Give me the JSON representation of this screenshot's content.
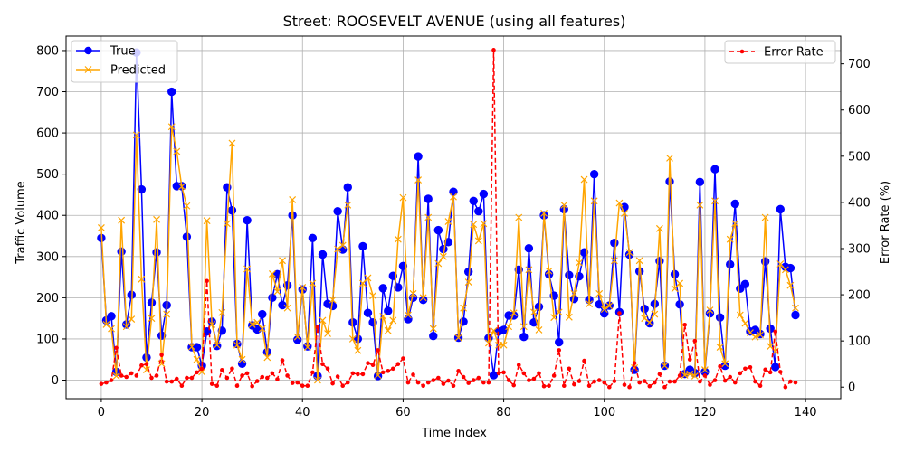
{
  "chart_data": {
    "type": "line",
    "title": "Street: ROOSEVELT AVENUE (using all features)",
    "xlabel": "Time Index",
    "ylabel": "Traffic Volume",
    "y2label": "Error Rate (%)",
    "xlim": [
      -7,
      147
    ],
    "ylim": [
      -45,
      835
    ],
    "y2lim": [
      -25,
      760
    ],
    "xticks": [
      0,
      20,
      40,
      60,
      80,
      100,
      120,
      140
    ],
    "yticks": [
      0,
      100,
      200,
      300,
      400,
      500,
      600,
      700,
      800
    ],
    "y2ticks": [
      0,
      100,
      200,
      300,
      400,
      500,
      600,
      700
    ],
    "grid": true,
    "legend_left_placement": "upper-left",
    "legend_right_placement": "upper-right",
    "colors": {
      "true": "#0000ff",
      "predicted": "#ffa500",
      "error": "#ff0000"
    },
    "series": [
      {
        "name": "True",
        "axis": "left",
        "values": [
          345,
          145,
          155,
          20,
          312,
          135,
          207,
          795,
          463,
          55,
          188,
          310,
          108,
          182,
          700,
          471,
          471,
          348,
          80,
          80,
          35,
          118,
          142,
          83,
          120,
          468,
          412,
          88,
          40,
          388,
          133,
          123,
          160,
          68,
          200,
          257,
          182,
          230,
          400,
          98,
          220,
          82,
          345,
          10,
          305,
          185,
          180,
          410,
          317,
          468,
          140,
          100,
          325,
          163,
          140,
          10,
          223,
          168,
          253,
          225,
          277,
          148,
          200,
          543,
          195,
          440,
          107,
          364,
          318,
          335,
          457,
          103,
          142,
          263,
          435,
          410,
          452,
          102,
          12,
          118,
          122,
          157,
          157,
          268,
          105,
          320,
          140,
          178,
          400,
          257,
          205,
          92,
          415,
          255,
          197,
          252,
          310,
          195,
          500,
          184,
          162,
          181,
          333,
          165,
          420,
          305,
          25,
          264,
          173,
          138,
          185,
          289,
          35,
          482,
          257,
          184,
          15,
          25,
          17,
          481,
          20,
          162,
          512,
          152,
          35,
          281,
          428,
          222,
          233,
          118,
          122,
          112,
          288,
          125,
          32,
          415,
          275,
          272,
          158
        ],
        "markers": "circle"
      },
      {
        "name": "Predicted",
        "axis": "left",
        "values": [
          370,
          135,
          125,
          10,
          388,
          130,
          148,
          595,
          245,
          25,
          150,
          390,
          40,
          160,
          615,
          555,
          470,
          423,
          81,
          50,
          20,
          387,
          135,
          85,
          164,
          380,
          575,
          85,
          50,
          270,
          135,
          140,
          125,
          55,
          258,
          215,
          290,
          175,
          438,
          105,
          225,
          80,
          235,
          0,
          145,
          113,
          195,
          318,
          327,
          425,
          100,
          72,
          235,
          248,
          205,
          12,
          155,
          120,
          145,
          342,
          443,
          158,
          210,
          486,
          200,
          395,
          125,
          283,
          300,
          385,
          445,
          103,
          175,
          238,
          378,
          338,
          380,
          90,
          120,
          85,
          85,
          130,
          163,
          395,
          130,
          268,
          165,
          122,
          405,
          265,
          152,
          165,
          425,
          153,
          210,
          285,
          487,
          185,
          435,
          210,
          172,
          180,
          290,
          430,
          405,
          310,
          30,
          290,
          150,
          140,
          160,
          368,
          35,
          539,
          222,
          235,
          12,
          15,
          10,
          425,
          25,
          170,
          435,
          80,
          40,
          342,
          380,
          158,
          138,
          115,
          105,
          110,
          395,
          82,
          70,
          282,
          268,
          230,
          175
        ],
        "markers": "x"
      },
      {
        "name": "Error Rate",
        "axis": "right",
        "values": [
          7,
          10,
          15,
          85,
          25,
          22,
          30,
          25,
          47,
          50,
          20,
          25,
          70,
          12,
          12,
          18,
          3,
          20,
          20,
          32,
          40,
          230,
          7,
          3,
          37,
          20,
          40,
          3,
          25,
          30,
          2,
          13,
          22,
          20,
          30,
          17,
          58,
          25,
          9,
          10,
          3,
          3,
          32,
          130,
          50,
          40,
          8,
          23,
          3,
          10,
          30,
          28,
          28,
          52,
          48,
          80,
          32,
          35,
          40,
          50,
          62,
          10,
          27,
          10,
          3,
          10,
          15,
          20,
          7,
          14,
          3,
          35,
          22,
          9,
          15,
          20,
          10,
          10,
          730,
          30,
          32,
          15,
          4,
          48,
          30,
          15,
          18,
          30,
          2,
          3,
          25,
          80,
          3,
          40,
          6,
          13,
          57,
          3,
          12,
          15,
          10,
          0,
          13,
          160,
          5,
          0,
          52,
          10,
          13,
          2,
          10,
          28,
          0,
          12,
          12,
          25,
          135,
          60,
          100,
          12,
          25,
          5,
          15,
          45,
          14,
          22,
          10,
          30,
          40,
          43,
          12,
          3,
          38,
          32,
          120,
          33,
          0,
          12,
          10
        ],
        "markers": "dot",
        "line_style": "dashed"
      }
    ]
  }
}
